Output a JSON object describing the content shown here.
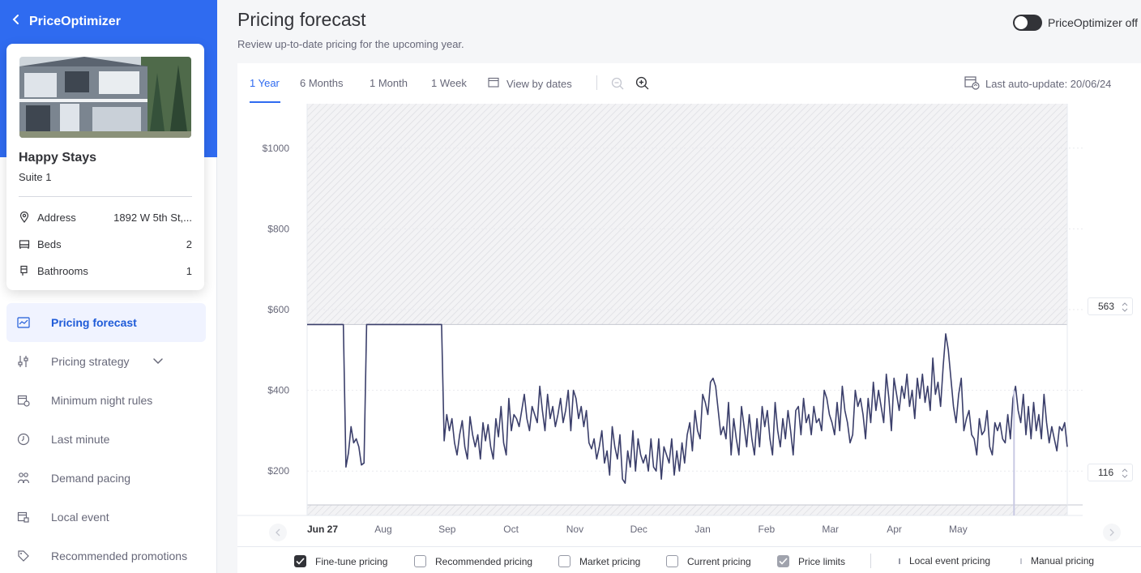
{
  "app": {
    "back_label": "PriceOptimizer"
  },
  "property": {
    "name": "Happy Stays",
    "unit": "Suite 1",
    "details": [
      {
        "label": "Address",
        "value": "1892 W 5th St,...",
        "icon": "map-pin-icon"
      },
      {
        "label": "Beds",
        "value": "2",
        "icon": "bed-icon"
      },
      {
        "label": "Bathrooms",
        "value": "1",
        "icon": "bath-icon"
      }
    ]
  },
  "nav": [
    {
      "label": "Pricing forecast",
      "icon": "chart-icon",
      "active": true
    },
    {
      "label": "Pricing strategy",
      "icon": "sliders-icon",
      "has_chevron": true
    },
    {
      "label": "Minimum night rules",
      "icon": "calendar-rule-icon"
    },
    {
      "label": "Last minute",
      "icon": "clock-icon"
    },
    {
      "label": "Demand pacing",
      "icon": "people-icon"
    },
    {
      "label": "Local event",
      "icon": "calendar-event-icon"
    },
    {
      "label": "Recommended promotions",
      "icon": "tag-icon"
    }
  ],
  "header": {
    "title": "Pricing forecast",
    "subtitle": "Review up-to-date pricing for the upcoming year.",
    "toggle_label": "PriceOptimizer off",
    "toggle_on": false
  },
  "toolbar": {
    "tabs": [
      "1 Year",
      "6 Months",
      "1 Month",
      "1 Week"
    ],
    "active_tab": "1 Year",
    "view_by_dates": "View by dates",
    "last_update": "Last auto-update: 20/06/24"
  },
  "limits": {
    "upper": "563",
    "lower": "116"
  },
  "legend": [
    {
      "label": "Fine-tune pricing",
      "state": "checked"
    },
    {
      "label": "Recommended pricing",
      "state": "unchecked"
    },
    {
      "label": "Market pricing",
      "state": "unchecked"
    },
    {
      "label": "Current pricing",
      "state": "unchecked"
    },
    {
      "label": "Price limits",
      "state": "checked-grey"
    },
    {
      "label": "Local event pricing",
      "state": "marker"
    },
    {
      "label": "Manual pricing",
      "state": "marker"
    }
  ],
  "colors": {
    "accent": "#2f6bf0",
    "line": "#3b3f6b",
    "hatch": "#e6e7ea"
  },
  "chart_data": {
    "type": "line",
    "y_tick_labels": [
      "$1000",
      "$800",
      "$600",
      "$400",
      "$200"
    ],
    "y_ticks": [
      1000,
      800,
      600,
      400,
      200
    ],
    "ylim": [
      90,
      1110
    ],
    "x_tick_labels": [
      "Jun 27",
      "Aug",
      "Sep",
      "Oct",
      "Nov",
      "Dec",
      "Jan",
      "Feb",
      "Mar",
      "Apr",
      "May"
    ],
    "x_tick_positions": [
      0,
      35,
      65,
      95,
      125,
      155,
      185,
      215,
      245,
      275,
      305
    ],
    "x_range": [
      0,
      357
    ],
    "upper_limit": 563,
    "lower_limit": 116,
    "marker_x": 332,
    "series": [
      {
        "values": [
          563,
          563,
          563,
          563,
          563,
          563,
          563,
          563,
          563,
          563,
          563,
          563,
          563,
          563,
          563,
          210,
          245,
          310,
          270,
          280,
          260,
          215,
          220,
          563,
          563,
          563,
          563,
          563,
          563,
          563,
          563,
          563,
          563,
          563,
          563,
          563,
          563,
          563,
          563,
          563,
          563,
          563,
          563,
          563,
          563,
          563,
          563,
          563,
          563,
          563,
          563,
          563,
          563,
          275,
          340,
          300,
          330,
          270,
          240,
          290,
          325,
          260,
          230,
          335,
          290,
          260,
          290,
          230,
          320,
          275,
          315,
          260,
          230,
          330,
          285,
          360,
          270,
          240,
          380,
          300,
          340,
          330,
          310,
          350,
          390,
          330,
          300,
          360,
          340,
          320,
          410,
          350,
          300,
          390,
          330,
          360,
          310,
          340,
          380,
          320,
          350,
          400,
          300,
          400,
          380,
          330,
          360,
          310,
          350,
          270,
          255,
          280,
          230,
          260,
          300,
          220,
          250,
          190,
          310,
          260,
          230,
          290,
          180,
          170,
          250,
          210,
          300,
          200,
          280,
          240,
          220,
          240,
          200,
          280,
          210,
          200,
          280,
          180,
          260,
          240,
          220,
          280,
          190,
          250,
          200,
          270,
          220,
          290,
          320,
          250,
          350,
          300,
          280,
          390,
          370,
          340,
          420,
          430,
          410,
          350,
          290,
          310,
          280,
          370,
          240,
          330,
          280,
          240,
          360,
          310,
          260,
          340,
          280,
          240,
          330,
          260,
          360,
          310,
          350,
          280,
          240,
          370,
          300,
          260,
          330,
          280,
          350,
          300,
          240,
          350,
          360,
          290,
          380,
          320,
          340,
          290,
          360,
          320,
          330,
          300,
          400,
          380,
          340,
          320,
          290,
          370,
          300,
          410,
          350,
          320,
          270,
          290,
          400,
          360,
          380,
          340,
          280,
          380,
          320,
          420,
          350,
          400,
          360,
          320,
          440,
          380,
          300,
          430,
          390,
          350,
          410,
          380,
          440,
          360,
          400,
          330,
          430,
          380,
          440,
          370,
          410,
          350,
          480,
          390,
          420,
          360,
          460,
          540,
          500,
          430,
          360,
          320,
          390,
          430,
          300,
          330,
          350,
          290,
          280,
          240,
          330,
          290,
          300,
          350,
          260,
          240,
          320,
          300,
          320,
          280,
          270,
          340,
          280,
          380,
          410,
          350,
          320,
          390,
          290,
          360,
          280,
          370,
          300,
          340,
          280,
          390,
          320,
          270,
          310,
          280,
          250,
          310,
          300,
          320,
          260
        ]
      }
    ]
  }
}
